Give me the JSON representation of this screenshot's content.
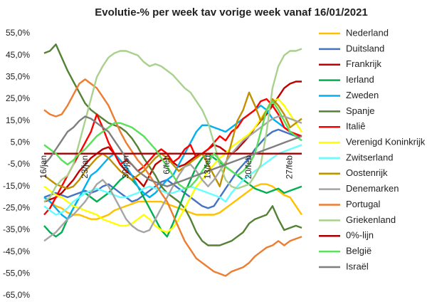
{
  "chart_data": {
    "type": "line",
    "title": "Evolutie-% per week tav vorige week vanaf 16/01/2021",
    "categories": [
      "16/jan",
      null,
      null,
      null,
      null,
      null,
      null,
      "23/jan",
      null,
      null,
      null,
      null,
      null,
      null,
      "30/jan",
      null,
      null,
      null,
      null,
      null,
      null,
      "6/feb",
      null,
      null,
      null,
      null,
      null,
      null,
      "13/feb",
      null,
      null,
      null,
      null,
      null,
      null,
      "20/feb",
      null,
      null,
      null,
      null,
      null,
      null,
      "27/feb",
      null,
      null
    ],
    "ylim": [
      -65,
      55
    ],
    "yticks": [
      {
        "value": 55,
        "label": "55,0%"
      },
      {
        "value": 45,
        "label": "45,0%"
      },
      {
        "value": 35,
        "label": "35,0%"
      },
      {
        "value": 25,
        "label": "25,0%"
      },
      {
        "value": 15,
        "label": "15,0%"
      },
      {
        "value": 5,
        "label": "5,0%"
      },
      {
        "value": -5,
        "label": "-5,0%"
      },
      {
        "value": -15,
        "label": "-15,0%"
      },
      {
        "value": -25,
        "label": "-25,0%"
      },
      {
        "value": -35,
        "label": "-35,0%"
      },
      {
        "value": -45,
        "label": "-45,0%"
      },
      {
        "value": -55,
        "label": "-55,0%"
      },
      {
        "value": -65,
        "label": "-65,0%"
      }
    ],
    "grid": false,
    "legend": "right",
    "series": [
      {
        "name": "Nederland",
        "color": "#ffc000",
        "values": [
          -20,
          -22,
          -24,
          -25,
          -27,
          -28,
          -28,
          -29,
          -30,
          -30,
          -29,
          -28,
          -26,
          -25,
          -24,
          -23,
          -22,
          -22,
          -22,
          -22,
          -22,
          -23,
          -24,
          -25,
          -26,
          -27,
          -28,
          -28,
          -28,
          -28,
          -27,
          -25,
          -23,
          -21,
          -19,
          -17,
          -15,
          -14,
          -14,
          -15,
          -17,
          -19,
          -20,
          -24,
          -28
        ]
      },
      {
        "name": "Duitsland",
        "color": "#4472c4",
        "values": [
          -20,
          -19,
          -18,
          -19,
          -20,
          -19,
          -18,
          -17,
          -18,
          -17,
          -15,
          -14,
          -16,
          -18,
          -20,
          -22,
          -21,
          -19,
          -17,
          -15,
          -13,
          -12,
          -14,
          -16,
          -18,
          -20,
          -22,
          -24,
          -25,
          -24,
          -20,
          -16,
          -12,
          -8,
          -5,
          -2,
          2,
          5,
          8,
          10,
          11,
          10,
          9,
          8,
          8
        ]
      },
      {
        "name": "Frankrijk",
        "color": "#c00000",
        "values": [
          -22,
          -21,
          -20,
          -18,
          -15,
          -12,
          -8,
          -5,
          -2,
          0,
          2,
          3,
          0,
          -5,
          -8,
          -10,
          -12,
          -15,
          -10,
          -5,
          -3,
          -2,
          -4,
          -6,
          -5,
          -3,
          -1,
          0,
          2,
          4,
          3,
          1,
          0,
          2,
          5,
          8,
          12,
          15,
          18,
          22,
          26,
          30,
          32,
          33,
          33
        ]
      },
      {
        "name": "Ierland",
        "color": "#00b050",
        "values": [
          -33,
          -36,
          -38,
          -36,
          -30,
          -25,
          -20,
          -18,
          -20,
          -22,
          -20,
          -18,
          -15,
          -12,
          -10,
          -12,
          -15,
          -20,
          -25,
          -30,
          -35,
          -38,
          -32,
          -25,
          -18,
          -12,
          -6,
          -2,
          0,
          -2,
          -4,
          -6,
          -8,
          -10,
          -12,
          -14,
          -16,
          -17,
          -18,
          -17,
          -16,
          -18,
          -17,
          -16,
          -15
        ]
      },
      {
        "name": "Zweden",
        "color": "#00b0f0",
        "values": [
          -20,
          -22,
          -25,
          -28,
          -30,
          -25,
          -20,
          -15,
          -10,
          -8,
          -5,
          -2,
          0,
          -3,
          -6,
          -10,
          -15,
          -18,
          -20,
          -18,
          -15,
          -12,
          -10,
          -5,
          0,
          5,
          10,
          13,
          13,
          12,
          11,
          10,
          12,
          14,
          16,
          18,
          20,
          22,
          20,
          16,
          14,
          12,
          10,
          8,
          6
        ]
      },
      {
        "name": "Spanje",
        "color": "#548235",
        "values": [
          46,
          47,
          50,
          44,
          38,
          33,
          28,
          23,
          20,
          18,
          16,
          14,
          13,
          12,
          10,
          7,
          3,
          -2,
          -6,
          -10,
          -15,
          -18,
          -20,
          -22,
          -25,
          -30,
          -36,
          -40,
          -42,
          -42,
          -42,
          -41,
          -40,
          -38,
          -36,
          -32,
          -30,
          -29,
          -28,
          -24,
          -30,
          -35,
          -34,
          -33,
          -34
        ]
      },
      {
        "name": "Italiê",
        "color": "#ff0000",
        "values": [
          -28,
          -25,
          -20,
          -15,
          -10,
          -5,
          0,
          5,
          10,
          18,
          12,
          5,
          0,
          -5,
          -3,
          -5,
          -8,
          -6,
          -3,
          0,
          2,
          0,
          -4,
          -2,
          2,
          4,
          -2,
          0,
          2,
          5,
          8,
          6,
          10,
          12,
          16,
          18,
          20,
          24,
          25,
          22,
          18,
          12,
          10,
          9,
          8
        ]
      },
      {
        "name": "Verenigd Koninkrijk",
        "color": "#ffff00",
        "values": [
          -15,
          -17,
          -19,
          -20,
          -22,
          -24,
          -25,
          -26,
          -27,
          -28,
          -30,
          -31,
          -32,
          -33,
          -33,
          -32,
          -30,
          -28,
          -30,
          -33,
          -35,
          -36,
          -34,
          -30,
          -25,
          -20,
          -15,
          -12,
          -8,
          -5,
          -2,
          0,
          3,
          5,
          7,
          9,
          12,
          16,
          20,
          24,
          25,
          22,
          18,
          14,
          10
        ]
      },
      {
        "name": "Zwitserland",
        "color": "#66ffff",
        "values": [
          -24,
          -26,
          -28,
          -27,
          -25,
          -22,
          -20,
          -18,
          -17,
          -16,
          -17,
          -18,
          -19,
          -20,
          -20,
          -19,
          -18,
          -16,
          -15,
          -16,
          -17,
          -18,
          -18,
          -17,
          -16,
          -15,
          -16,
          -17,
          -18,
          -19,
          -20,
          -22,
          -18,
          -15,
          -12,
          -10,
          -8,
          -6,
          -4,
          -2,
          0,
          1,
          2,
          3,
          4
        ]
      },
      {
        "name": "Oostenrijk",
        "color": "#bf9000",
        "values": [
          -10,
          -12,
          -14,
          -15,
          -16,
          -15,
          -12,
          -8,
          -5,
          -2,
          0,
          -2,
          -5,
          -8,
          -10,
          -12,
          -10,
          -8,
          -5,
          -2,
          0,
          -2,
          -5,
          -8,
          -6,
          -4,
          -2,
          0,
          -5,
          -10,
          -15,
          -5,
          5,
          15,
          20,
          28,
          22,
          15,
          20,
          25,
          22,
          18,
          12,
          14,
          16
        ]
      },
      {
        "name": "Denemarken",
        "color": "#a5a5a5",
        "values": [
          -40,
          -38,
          -36,
          -33,
          -30,
          -28,
          -25,
          -22,
          -18,
          -14,
          -12,
          -15,
          -20,
          -25,
          -30,
          -33,
          -35,
          -36,
          -35,
          -30,
          -25,
          -20,
          -15,
          -10,
          -6,
          -5,
          -8,
          -12,
          -15,
          -12,
          -8,
          -4,
          0,
          3,
          6,
          8,
          10,
          12,
          14,
          16,
          17,
          17,
          16,
          15,
          14
        ]
      },
      {
        "name": "Portugal",
        "color": "#ed7d31",
        "values": [
          20,
          18,
          17,
          18,
          22,
          27,
          32,
          34,
          32,
          30,
          26,
          22,
          16,
          10,
          5,
          1,
          -3,
          -6,
          -10,
          -14,
          -18,
          -22,
          -28,
          -34,
          -40,
          -44,
          -48,
          -50,
          -52,
          -54,
          -55,
          -56,
          -54,
          -53,
          -52,
          -50,
          -47,
          -45,
          -43,
          -42,
          -40,
          -42,
          -40,
          -39,
          -38
        ]
      },
      {
        "name": "Griekenland",
        "color": "#a9d18e",
        "values": [
          -22,
          -20,
          -15,
          -12,
          -10,
          -5,
          5,
          15,
          25,
          35,
          40,
          44,
          46,
          47,
          47,
          46,
          45,
          42,
          40,
          41,
          40,
          38,
          36,
          33,
          30,
          28,
          24,
          20,
          14,
          5,
          -5,
          -12,
          -15,
          -16,
          -15,
          -14,
          -10,
          -5,
          10,
          30,
          40,
          45,
          47,
          47,
          48
        ]
      },
      {
        "name": "0%-lijn",
        "color": "#a50000",
        "values": [
          0,
          0,
          0,
          0,
          0,
          0,
          0,
          0,
          0,
          0,
          0,
          0,
          0,
          0,
          0,
          0,
          0,
          0,
          0,
          0,
          0,
          0,
          0,
          0,
          0,
          0,
          0,
          0,
          0,
          0,
          0,
          0,
          0,
          0,
          0,
          0,
          0,
          0,
          0,
          0,
          0,
          0,
          0,
          0,
          0
        ]
      },
      {
        "name": "België",
        "color": "#5ae05a",
        "values": [
          4,
          2,
          0,
          -3,
          -5,
          -3,
          0,
          2,
          5,
          8,
          10,
          12,
          14,
          14,
          13,
          12,
          10,
          8,
          5,
          2,
          -2,
          -6,
          -10,
          -14,
          -16,
          -15,
          -12,
          -8,
          -4,
          0,
          -3,
          -6,
          -8,
          -10,
          -8,
          -5,
          0,
          10,
          20,
          24,
          20,
          15,
          10,
          8,
          6
        ]
      },
      {
        "name": "Israël",
        "color": "#7f7f7f",
        "values": [
          -5,
          -2,
          2,
          6,
          10,
          12,
          15,
          17,
          16,
          14,
          12,
          10,
          6,
          2,
          -2,
          -5,
          -8,
          -10,
          -12,
          -13,
          -14,
          -15,
          -14,
          -13,
          -12,
          -11,
          -10,
          -9,
          -8,
          -7,
          -6,
          -5,
          -4,
          -3,
          -2,
          -1,
          0,
          1,
          2,
          3,
          4,
          5,
          6,
          7,
          8
        ]
      }
    ]
  }
}
